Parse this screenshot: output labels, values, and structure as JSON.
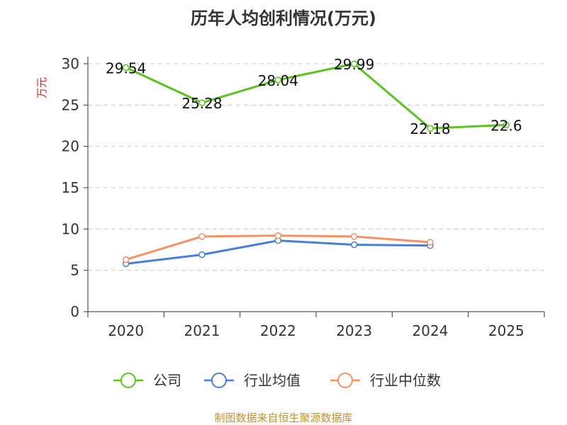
{
  "chart_data": {
    "type": "line",
    "title": "历年人均创利情况(万元)",
    "ylabel": "万元",
    "xlabel": "",
    "categories": [
      "2020",
      "2021",
      "2022",
      "2023",
      "2024",
      "2025"
    ],
    "ylim": [
      0,
      30
    ],
    "yticks": [
      0,
      5,
      10,
      15,
      20,
      25,
      30
    ],
    "grid": true,
    "legend_position": "bottom",
    "series": [
      {
        "name": "公司",
        "color": "#5cc21f",
        "values": [
          29.54,
          25.28,
          28.04,
          29.99,
          22.18,
          22.6
        ],
        "labels": [
          "29.54",
          "25.28",
          "28.04",
          "29.99",
          "22.18",
          "22.6"
        ]
      },
      {
        "name": "行业均值",
        "color": "#4a7fd6",
        "values": [
          5.8,
          6.9,
          8.6,
          8.1,
          8.0,
          null
        ]
      },
      {
        "name": "行业中位数",
        "color": "#f59164",
        "values": [
          6.3,
          9.1,
          9.2,
          9.1,
          8.4,
          null
        ]
      }
    ]
  },
  "source_text": "制图数据来自恒生聚源数据库"
}
